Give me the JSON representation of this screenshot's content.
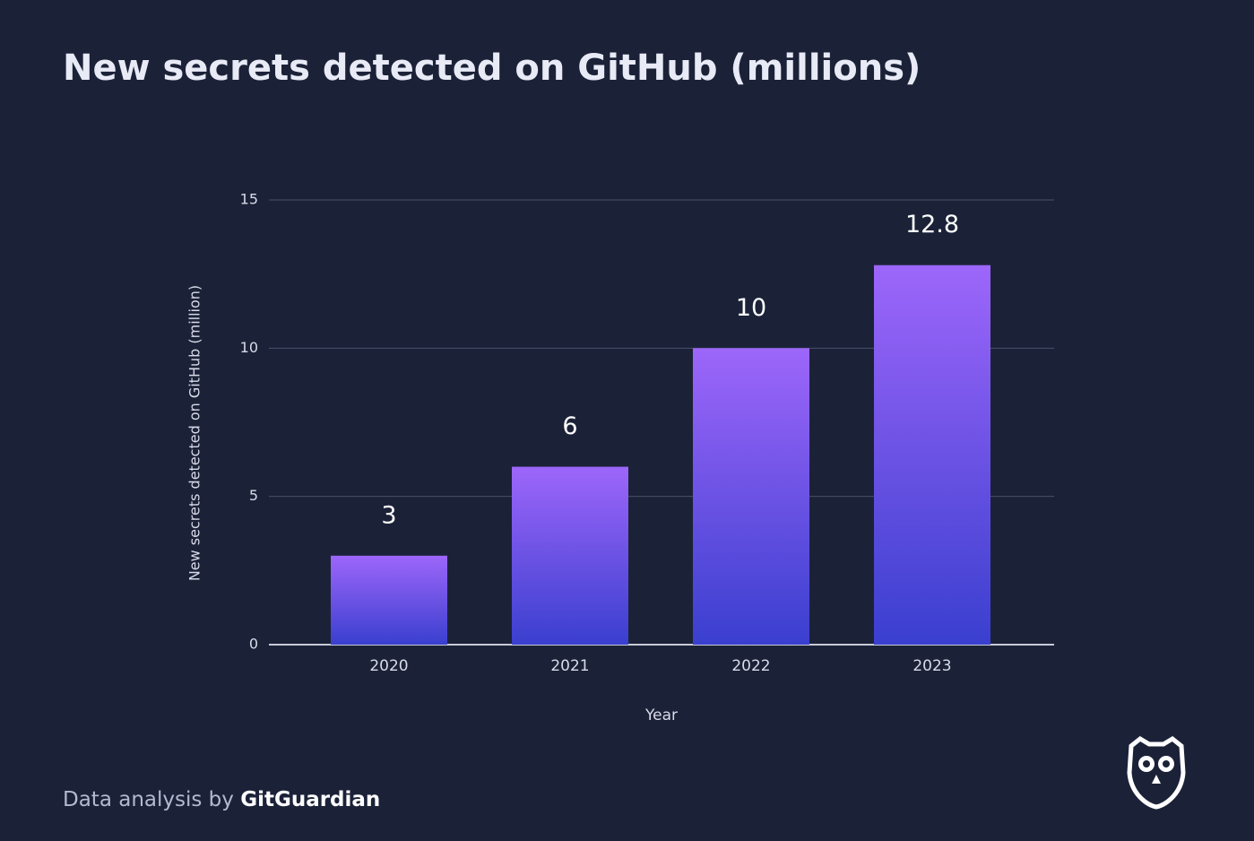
{
  "chart_data": {
    "type": "bar",
    "title": "New secrets detected on GitHub (millions)",
    "categories": [
      "2020",
      "2021",
      "2022",
      "2023"
    ],
    "values": [
      3,
      6,
      10,
      12.8
    ],
    "gradient": [
      "#9d66fa",
      "#3a3fcf"
    ],
    "ylim": [
      0,
      15
    ],
    "yticks": [
      0,
      5,
      10,
      15
    ],
    "grid": true,
    "ylabel": "New secrets detected on GitHub (million)",
    "xlabel": "Year",
    "source": {
      "prefix": "Data analysis by",
      "brand": "GitGuardian"
    }
  }
}
